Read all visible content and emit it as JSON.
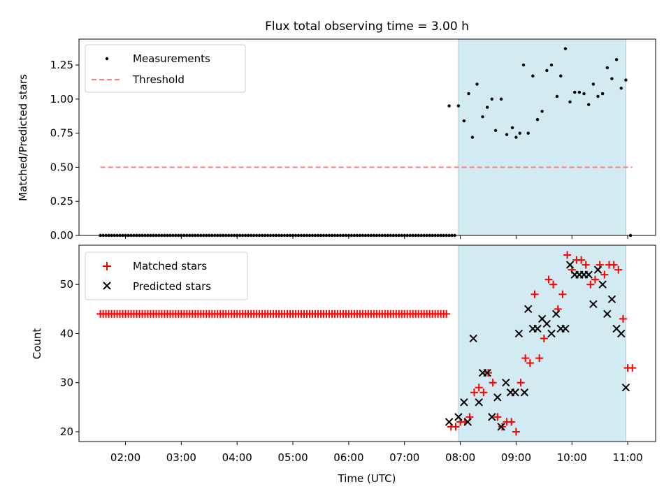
{
  "title": "Flux total observing time = 3.00 h",
  "chart_data": [
    {
      "type": "scatter",
      "ylabel": "Matched/Predicted stars",
      "xlabel": "",
      "xlim": [
        "01:10",
        "11:30"
      ],
      "ylim": [
        0,
        1.44
      ],
      "yticks": [
        0.0,
        0.25,
        0.5,
        0.75,
        1.0,
        1.25
      ],
      "ytick_labels": [
        "0.00",
        "0.25",
        "0.50",
        "0.75",
        "1.00",
        "1.25"
      ],
      "shaded_span": [
        "07:58",
        "10:58"
      ],
      "shade_color": "#add8e6",
      "legend": {
        "placement": "top-left",
        "entries": [
          {
            "label": "Measurements",
            "marker": "dot",
            "color": "#000000"
          },
          {
            "label": "Threshold",
            "marker": "dashed-line",
            "color": "#ff7f7f"
          }
        ]
      },
      "threshold": {
        "value": 0.5,
        "x_start": "01:33",
        "x_end": "11:05"
      },
      "series": [
        {
          "name": "Measurements",
          "color": "#000000",
          "zero_points": {
            "start": "01:33",
            "end": "07:54",
            "step_minutes": 3
          },
          "points": [
            [
              "07:48",
              0.95
            ],
            [
              "07:58",
              0.95
            ],
            [
              "08:04",
              0.84
            ],
            [
              "08:09",
              1.04
            ],
            [
              "08:13",
              0.72
            ],
            [
              "08:18",
              1.11
            ],
            [
              "08:24",
              0.87
            ],
            [
              "08:29",
              0.94
            ],
            [
              "08:34",
              1.0
            ],
            [
              "08:38",
              0.77
            ],
            [
              "08:44",
              1.0
            ],
            [
              "08:50",
              0.74
            ],
            [
              "08:56",
              0.79
            ],
            [
              "09:00",
              0.72
            ],
            [
              "09:04",
              0.75
            ],
            [
              "09:08",
              1.25
            ],
            [
              "09:13",
              0.75
            ],
            [
              "09:18",
              1.17
            ],
            [
              "09:23",
              0.85
            ],
            [
              "09:28",
              0.91
            ],
            [
              "09:33",
              1.21
            ],
            [
              "09:38",
              1.25
            ],
            [
              "09:44",
              1.02
            ],
            [
              "09:48",
              1.17
            ],
            [
              "09:53",
              1.37
            ],
            [
              "09:58",
              0.98
            ],
            [
              "10:03",
              1.05
            ],
            [
              "10:08",
              1.05
            ],
            [
              "10:13",
              1.04
            ],
            [
              "10:18",
              0.96
            ],
            [
              "10:23",
              1.11
            ],
            [
              "10:28",
              1.02
            ],
            [
              "10:33",
              1.04
            ],
            [
              "10:38",
              1.23
            ],
            [
              "10:43",
              1.15
            ],
            [
              "10:48",
              1.29
            ],
            [
              "10:53",
              1.08
            ],
            [
              "10:58",
              1.14
            ],
            [
              "11:03",
              0.0
            ]
          ]
        }
      ]
    },
    {
      "type": "scatter",
      "ylabel": "Count",
      "xlabel": "Time (UTC)",
      "xlim": [
        "01:10",
        "11:30"
      ],
      "ylim": [
        18,
        58
      ],
      "yticks": [
        20,
        30,
        40,
        50
      ],
      "ytick_labels": [
        "20",
        "30",
        "40",
        "50"
      ],
      "xticks": [
        "02:00",
        "03:00",
        "04:00",
        "05:00",
        "06:00",
        "07:00",
        "08:00",
        "09:00",
        "10:00",
        "11:00"
      ],
      "shaded_span": [
        "07:58",
        "10:58"
      ],
      "shade_color": "#add8e6",
      "legend": {
        "placement": "top-left",
        "entries": [
          {
            "label": "Matched stars",
            "marker": "plus",
            "color": "#ff0000"
          },
          {
            "label": "Predicted stars",
            "marker": "x",
            "color": "#000000"
          }
        ]
      },
      "series": [
        {
          "name": "Matched stars",
          "color": "#ff0000",
          "constant_run": {
            "start": "01:33",
            "end": "07:45",
            "step_minutes": 3,
            "value": 44
          },
          "points": [
            [
              "07:50",
              21
            ],
            [
              "07:55",
              21
            ],
            [
              "08:00",
              22
            ],
            [
              "08:05",
              22
            ],
            [
              "08:10",
              23
            ],
            [
              "08:15",
              28
            ],
            [
              "08:20",
              29
            ],
            [
              "08:25",
              28
            ],
            [
              "08:30",
              32
            ],
            [
              "08:35",
              30
            ],
            [
              "08:40",
              23
            ],
            [
              "08:45",
              21
            ],
            [
              "08:50",
              22
            ],
            [
              "08:55",
              22
            ],
            [
              "09:00",
              20
            ],
            [
              "09:05",
              30
            ],
            [
              "09:10",
              35
            ],
            [
              "09:15",
              34
            ],
            [
              "09:20",
              48
            ],
            [
              "09:25",
              35
            ],
            [
              "09:30",
              39
            ],
            [
              "09:35",
              51
            ],
            [
              "09:40",
              50
            ],
            [
              "09:45",
              45
            ],
            [
              "09:50",
              48
            ],
            [
              "09:55",
              56
            ],
            [
              "10:00",
              53
            ],
            [
              "10:05",
              55
            ],
            [
              "10:10",
              55
            ],
            [
              "10:15",
              54
            ],
            [
              "10:20",
              50
            ],
            [
              "10:25",
              51
            ],
            [
              "10:30",
              54
            ],
            [
              "10:35",
              52
            ],
            [
              "10:40",
              54
            ],
            [
              "10:45",
              54
            ],
            [
              "10:50",
              53
            ],
            [
              "10:55",
              43
            ],
            [
              "11:00",
              33
            ],
            [
              "11:05",
              33
            ]
          ]
        },
        {
          "name": "Predicted stars",
          "color": "#000000",
          "points": [
            [
              "07:48",
              22
            ],
            [
              "07:58",
              23
            ],
            [
              "08:04",
              26
            ],
            [
              "08:08",
              22
            ],
            [
              "08:14",
              39
            ],
            [
              "08:20",
              26
            ],
            [
              "08:24",
              32
            ],
            [
              "08:29",
              32
            ],
            [
              "08:34",
              23
            ],
            [
              "08:40",
              27
            ],
            [
              "08:44",
              21
            ],
            [
              "08:49",
              30
            ],
            [
              "08:54",
              28
            ],
            [
              "08:59",
              28
            ],
            [
              "09:03",
              40
            ],
            [
              "09:09",
              28
            ],
            [
              "09:13",
              45
            ],
            [
              "09:18",
              41
            ],
            [
              "09:23",
              41
            ],
            [
              "09:28",
              43
            ],
            [
              "09:33",
              42
            ],
            [
              "09:38",
              40
            ],
            [
              "09:43",
              44
            ],
            [
              "09:48",
              41
            ],
            [
              "09:53",
              41
            ],
            [
              "09:58",
              54
            ],
            [
              "10:03",
              52
            ],
            [
              "10:08",
              52
            ],
            [
              "10:13",
              52
            ],
            [
              "10:18",
              52
            ],
            [
              "10:23",
              46
            ],
            [
              "10:28",
              53
            ],
            [
              "10:33",
              50
            ],
            [
              "10:38",
              44
            ],
            [
              "10:43",
              47
            ],
            [
              "10:48",
              41
            ],
            [
              "10:53",
              40
            ],
            [
              "10:58",
              29
            ]
          ]
        }
      ]
    }
  ]
}
